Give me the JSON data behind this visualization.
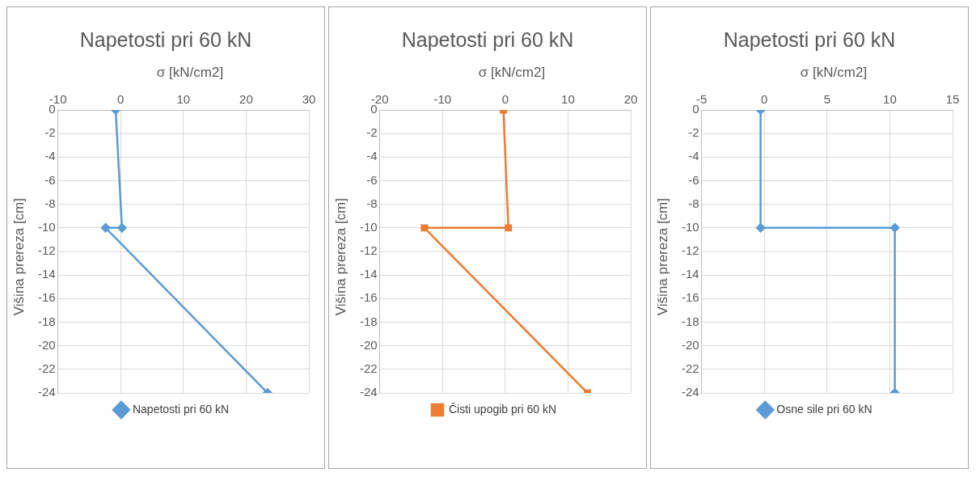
{
  "chart_data": [
    {
      "type": "line",
      "title": "Napetosti pri 60 kN",
      "xlabel": "σ [kN/cm2]",
      "ylabel": "Višina prereza [cm]",
      "xlim": [
        -10,
        30
      ],
      "xticks": [
        -10,
        0,
        10,
        20,
        30
      ],
      "ylim": [
        -24,
        0
      ],
      "yticks": [
        0,
        -2,
        -4,
        -6,
        -8,
        -10,
        -12,
        -14,
        -16,
        -18,
        -20,
        -22,
        -24
      ],
      "grid": true,
      "legend": "bottom",
      "marker": "diamond",
      "series": [
        {
          "name": "Napetosti pri 60 kN",
          "color": "#5b9bd5",
          "x": [
            -0.8,
            0.2,
            -2.4,
            23.4
          ],
          "values": [
            0,
            -10,
            -10,
            -24
          ]
        }
      ]
    },
    {
      "type": "line",
      "title": "Napetosti pri 60 kN",
      "xlabel": "σ [kN/cm2]",
      "ylabel": "Višina prereza [cm]",
      "xlim": [
        -20,
        20
      ],
      "xticks": [
        -20,
        -10,
        0,
        10,
        20
      ],
      "ylim": [
        -24,
        0
      ],
      "yticks": [
        0,
        -2,
        -4,
        -6,
        -8,
        -10,
        -12,
        -14,
        -16,
        -18,
        -20,
        -22,
        -24
      ],
      "grid": true,
      "legend": "bottom",
      "marker": "square",
      "series": [
        {
          "name": "Čisti upogib pri 60 kN",
          "color": "#ed7d31",
          "x": [
            -0.3,
            0.5,
            -12.9,
            13.1
          ],
          "values": [
            0,
            -10,
            -10,
            -24
          ]
        }
      ]
    },
    {
      "type": "line",
      "title": "Napetosti pri 60 kN",
      "xlabel": "σ [kN/cm2]",
      "ylabel": "Višina prereza [cm]",
      "xlim": [
        -5,
        15
      ],
      "xticks": [
        -5,
        0,
        5,
        10,
        15
      ],
      "ylim": [
        -24,
        0
      ],
      "yticks": [
        0,
        -2,
        -4,
        -6,
        -8,
        -10,
        -12,
        -14,
        -16,
        -18,
        -20,
        -22,
        -24
      ],
      "grid": true,
      "legend": "bottom",
      "marker": "diamond",
      "series": [
        {
          "name": "Osne sile pri 60 kN",
          "color": "#5b9bd5",
          "x": [
            -0.3,
            -0.3,
            10.4,
            10.4
          ],
          "values": [
            0,
            -10,
            -10,
            -24
          ]
        }
      ]
    }
  ]
}
